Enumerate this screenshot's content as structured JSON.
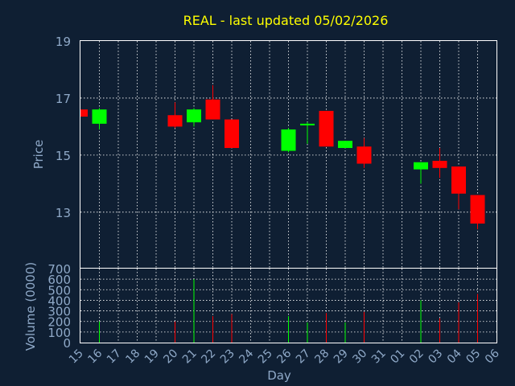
{
  "colors": {
    "background": "#0f1f33",
    "up": "#00ff00",
    "down": "#ff0000",
    "title": "#ffff00",
    "text": "#8fa9c8",
    "grid": "#ffffff"
  },
  "chart_data": [
    {
      "type": "candlestick",
      "title": "REAL - last updated 05/02/2026",
      "ylabel": "Price",
      "xlabel": "Day",
      "ylim": [
        11.05,
        19
      ],
      "yticks": [
        13,
        15,
        17,
        19
      ],
      "grid": true,
      "categories": [
        "15",
        "16",
        "17",
        "18",
        "19",
        "20",
        "21",
        "22",
        "23",
        "24",
        "25",
        "26",
        "27",
        "28",
        "29",
        "30",
        "31",
        "01",
        "02",
        "03",
        "04",
        "05",
        "06"
      ],
      "candles": [
        {
          "x": "15",
          "open": 16.6,
          "close": 16.35,
          "high": 16.6,
          "low": 16.35
        },
        {
          "x": "16",
          "open": 16.1,
          "close": 16.6,
          "high": 16.65,
          "low": 15.9
        },
        {
          "x": "20",
          "open": 16.4,
          "close": 16.0,
          "high": 16.85,
          "low": 15.95
        },
        {
          "x": "21",
          "open": 16.15,
          "close": 16.6,
          "high": 16.65,
          "low": 16.0
        },
        {
          "x": "22",
          "open": 16.95,
          "close": 16.25,
          "high": 17.45,
          "low": 16.25
        },
        {
          "x": "23",
          "open": 16.25,
          "close": 15.25,
          "high": 16.25,
          "low": 15.25
        },
        {
          "x": "26",
          "open": 15.15,
          "close": 15.9,
          "high": 15.95,
          "low": 15.1
        },
        {
          "x": "27",
          "open": 16.05,
          "close": 16.1,
          "high": 16.15,
          "low": 15.4
        },
        {
          "x": "28",
          "open": 16.55,
          "close": 15.3,
          "high": 16.55,
          "low": 15.3
        },
        {
          "x": "29",
          "open": 15.25,
          "close": 15.5,
          "high": 15.5,
          "low": 15.25
        },
        {
          "x": "30",
          "open": 15.3,
          "close": 14.7,
          "high": 15.6,
          "low": 14.55
        },
        {
          "x": "02",
          "open": 14.5,
          "close": 14.75,
          "high": 14.75,
          "low": 14.0
        },
        {
          "x": "03",
          "open": 14.8,
          "close": 14.55,
          "high": 15.25,
          "low": 14.2
        },
        {
          "x": "04",
          "open": 14.6,
          "close": 13.65,
          "high": 14.6,
          "low": 13.1
        },
        {
          "x": "05",
          "open": 13.6,
          "close": 12.6,
          "high": 13.6,
          "low": 12.4
        }
      ]
    },
    {
      "type": "bar",
      "ylabel": "Volume (0000)",
      "xlabel": "Day",
      "ylim": [
        0,
        700
      ],
      "yticks": [
        0,
        100,
        200,
        300,
        400,
        500,
        600,
        700
      ],
      "grid": true,
      "categories": [
        "15",
        "16",
        "17",
        "18",
        "19",
        "20",
        "21",
        "22",
        "23",
        "24",
        "25",
        "26",
        "27",
        "28",
        "29",
        "30",
        "31",
        "01",
        "02",
        "03",
        "04",
        "05",
        "06"
      ],
      "bars": [
        {
          "x": "16",
          "value": 200,
          "direction": "up"
        },
        {
          "x": "20",
          "value": 200,
          "direction": "down"
        },
        {
          "x": "21",
          "value": 600,
          "direction": "up"
        },
        {
          "x": "22",
          "value": 250,
          "direction": "down"
        },
        {
          "x": "23",
          "value": 270,
          "direction": "down"
        },
        {
          "x": "26",
          "value": 250,
          "direction": "up"
        },
        {
          "x": "27",
          "value": 190,
          "direction": "up"
        },
        {
          "x": "28",
          "value": 280,
          "direction": "down"
        },
        {
          "x": "29",
          "value": 190,
          "direction": "up"
        },
        {
          "x": "30",
          "value": 290,
          "direction": "down"
        },
        {
          "x": "02",
          "value": 400,
          "direction": "up"
        },
        {
          "x": "03",
          "value": 230,
          "direction": "down"
        },
        {
          "x": "04",
          "value": 380,
          "direction": "down"
        },
        {
          "x": "05",
          "value": 460,
          "direction": "down"
        }
      ]
    }
  ]
}
